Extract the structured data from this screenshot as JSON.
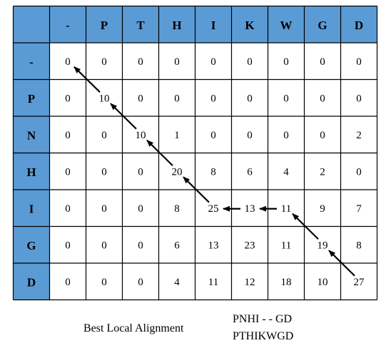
{
  "table": {
    "header_corner": "",
    "col_headers": [
      "-",
      "P",
      "T",
      "H",
      "I",
      "K",
      "W",
      "G",
      "D"
    ],
    "row_headers": [
      "-",
      "P",
      "N",
      "H",
      "I",
      "G",
      "D"
    ],
    "cells": [
      [
        "0",
        "0",
        "0",
        "0",
        "0",
        "0",
        "0",
        "0",
        "0"
      ],
      [
        "0",
        "10",
        "0",
        "0",
        "0",
        "0",
        "0",
        "0",
        "0"
      ],
      [
        "0",
        "0",
        "10",
        "1",
        "0",
        "0",
        "0",
        "0",
        "2"
      ],
      [
        "0",
        "0",
        "0",
        "20",
        "8",
        "6",
        "4",
        "2",
        "0"
      ],
      [
        "0",
        "0",
        "0",
        "8",
        "25",
        "13",
        "11",
        "9",
        "7"
      ],
      [
        "0",
        "0",
        "0",
        "6",
        "13",
        "23",
        "11",
        "19",
        "8"
      ],
      [
        "0",
        "0",
        "0",
        "4",
        "11",
        "12",
        "18",
        "10",
        "27"
      ]
    ],
    "header_color": "#5B9BD5",
    "traceback": [
      {
        "from": [
          6,
          8
        ],
        "to": [
          5,
          7
        ],
        "dir": "diagonal"
      },
      {
        "from": [
          5,
          7
        ],
        "to": [
          4,
          6
        ],
        "dir": "diagonal"
      },
      {
        "from": [
          4,
          6
        ],
        "to": [
          4,
          5
        ],
        "dir": "left"
      },
      {
        "from": [
          4,
          5
        ],
        "to": [
          4,
          4
        ],
        "dir": "left"
      },
      {
        "from": [
          4,
          4
        ],
        "to": [
          3,
          3
        ],
        "dir": "diagonal"
      },
      {
        "from": [
          3,
          3
        ],
        "to": [
          2,
          2
        ],
        "dir": "diagonal"
      },
      {
        "from": [
          2,
          2
        ],
        "to": [
          1,
          1
        ],
        "dir": "diagonal"
      },
      {
        "from": [
          1,
          1
        ],
        "to": [
          0,
          0
        ],
        "dir": "diagonal"
      }
    ]
  },
  "caption": {
    "label": "Best Local Alignment",
    "seq1": "PNHI - - GD",
    "seq2": "PTHIKWGD"
  }
}
